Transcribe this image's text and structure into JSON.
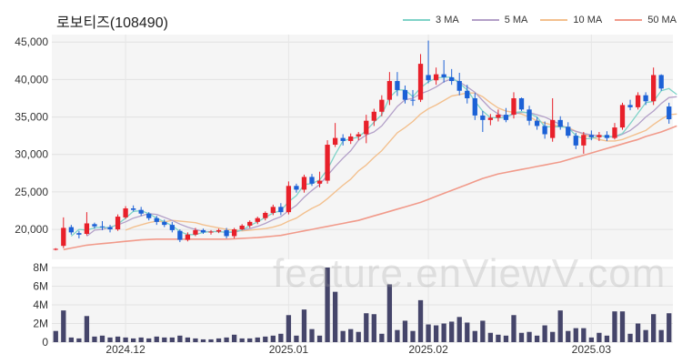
{
  "title": "로보티즈(108490)",
  "watermark": "feature.enViewV.com",
  "colors": {
    "up": "#e8202a",
    "down": "#1c61d6",
    "volume": "#45456a",
    "ma3": "#7fd3c8",
    "ma5": "#b3a0c8",
    "ma10": "#f3c08e",
    "ma50": "#f19a8a"
  },
  "legend": [
    {
      "label": "3 MA",
      "color": "#7fd3c8"
    },
    {
      "label": "5 MA",
      "color": "#b3a0c8"
    },
    {
      "label": "10 MA",
      "color": "#f3c08e"
    },
    {
      "label": "50 MA",
      "color": "#f19a8a"
    }
  ],
  "chart_data": {
    "type": "candlestick",
    "price_axis": {
      "ylim": [
        16000,
        46000
      ],
      "ticks": [
        20000,
        25000,
        30000,
        35000,
        40000,
        45000
      ],
      "tick_labels": [
        "20,000",
        "25,000",
        "30,000",
        "35,000",
        "40,000",
        "45,000"
      ]
    },
    "volume_axis": {
      "ylim": [
        0,
        8000000
      ],
      "ticks": [
        0,
        2000000,
        4000000,
        6000000,
        8000000
      ],
      "tick_labels": [
        "0",
        "2M",
        "4M",
        "6M",
        "8M"
      ]
    },
    "x_tick_labels": [
      {
        "label": "2024.12",
        "index": 9
      },
      {
        "label": "2025.01",
        "index": 30
      },
      {
        "label": "2025.02",
        "index": 48
      },
      {
        "label": "2025.03",
        "index": 69
      }
    ],
    "candles": [
      [
        17300,
        17500,
        17200,
        17400,
        1200000
      ],
      [
        17800,
        21600,
        17500,
        20200,
        3400000
      ],
      [
        20300,
        20600,
        19300,
        19600,
        500000
      ],
      [
        19500,
        19800,
        18800,
        19300,
        400000
      ],
      [
        19400,
        22300,
        19200,
        20800,
        2800000
      ],
      [
        20700,
        20900,
        20100,
        20400,
        600000
      ],
      [
        20400,
        21100,
        19900,
        20300,
        700000
      ],
      [
        20300,
        20600,
        19600,
        20000,
        500000
      ],
      [
        20000,
        22000,
        19800,
        21700,
        600000
      ],
      [
        21600,
        23100,
        21400,
        22800,
        500000
      ],
      [
        22800,
        23200,
        22400,
        22600,
        400000
      ],
      [
        22600,
        23000,
        21800,
        22100,
        500000
      ],
      [
        22100,
        22300,
        21200,
        21500,
        400000
      ],
      [
        21500,
        21800,
        20600,
        21000,
        600000
      ],
      [
        21000,
        21300,
        20300,
        20600,
        500000
      ],
      [
        20600,
        21000,
        19600,
        19900,
        500000
      ],
      [
        19800,
        20000,
        18300,
        18600,
        700000
      ],
      [
        18600,
        19600,
        18400,
        19300,
        500000
      ],
      [
        19300,
        20200,
        19100,
        19900,
        400000
      ],
      [
        19900,
        20100,
        19400,
        19600,
        300000
      ],
      [
        19600,
        19900,
        19300,
        19700,
        300000
      ],
      [
        19700,
        20100,
        19500,
        19900,
        400000
      ],
      [
        19900,
        20200,
        18800,
        19100,
        500000
      ],
      [
        19100,
        20200,
        18800,
        20000,
        800000
      ],
      [
        20000,
        20700,
        19900,
        20500,
        400000
      ],
      [
        20500,
        21200,
        20200,
        21000,
        400000
      ],
      [
        21000,
        21700,
        20700,
        21500,
        500000
      ],
      [
        21500,
        22400,
        21200,
        22200,
        600000
      ],
      [
        22200,
        23300,
        21900,
        23000,
        700000
      ],
      [
        23000,
        23500,
        21900,
        22300,
        900000
      ],
      [
        22300,
        26400,
        22000,
        25800,
        2900000
      ],
      [
        25800,
        26100,
        24900,
        25300,
        700000
      ],
      [
        25300,
        27300,
        24900,
        27000,
        3500000
      ],
      [
        27000,
        27400,
        25800,
        26100,
        1400000
      ],
      [
        26100,
        27700,
        25600,
        26500,
        700000
      ],
      [
        26500,
        31900,
        26100,
        31300,
        8000000
      ],
      [
        31300,
        34200,
        31000,
        32200,
        5400000
      ],
      [
        32200,
        32700,
        31200,
        31800,
        1200000
      ],
      [
        31800,
        32800,
        31400,
        32400,
        1400000
      ],
      [
        32400,
        33000,
        31900,
        32700,
        1100000
      ],
      [
        32700,
        35300,
        31500,
        34500,
        3100000
      ],
      [
        34500,
        36100,
        33800,
        35700,
        3000000
      ],
      [
        35700,
        37900,
        35100,
        37300,
        900000
      ],
      [
        37300,
        41000,
        36600,
        39800,
        6200000
      ],
      [
        39800,
        41000,
        37800,
        38600,
        1300000
      ],
      [
        38600,
        39200,
        36800,
        37300,
        2300000
      ],
      [
        37300,
        38600,
        36500,
        37200,
        1200000
      ],
      [
        37300,
        43400,
        37000,
        42100,
        4500000
      ],
      [
        40600,
        45200,
        39500,
        39900,
        1900000
      ],
      [
        39900,
        41600,
        39300,
        40700,
        1800000
      ],
      [
        40700,
        42600,
        39600,
        40300,
        2000000
      ],
      [
        40300,
        41400,
        39300,
        39800,
        2200000
      ],
      [
        39800,
        40900,
        37900,
        38500,
        2700000
      ],
      [
        38500,
        39300,
        36800,
        37500,
        2100000
      ],
      [
        37500,
        38200,
        34600,
        35200,
        1200000
      ],
      [
        35200,
        35800,
        33000,
        34600,
        2300000
      ],
      [
        34600,
        35400,
        33900,
        34900,
        1000000
      ],
      [
        34900,
        36000,
        34400,
        35300,
        800000
      ],
      [
        35300,
        36200,
        34300,
        34600,
        700000
      ],
      [
        35300,
        38300,
        34800,
        37500,
        2900000
      ],
      [
        37500,
        37600,
        35800,
        36000,
        1000000
      ],
      [
        36000,
        36500,
        33900,
        34500,
        1100000
      ],
      [
        34500,
        35000,
        33300,
        33800,
        700000
      ],
      [
        33800,
        34400,
        32100,
        32700,
        1800000
      ],
      [
        32200,
        37500,
        31700,
        34600,
        1100000
      ],
      [
        34600,
        35100,
        33300,
        33700,
        3400000
      ],
      [
        33700,
        34300,
        32200,
        32500,
        1200000
      ],
      [
        32500,
        32900,
        30700,
        31200,
        1500000
      ],
      [
        31200,
        33000,
        30100,
        32600,
        1500000
      ],
      [
        32600,
        33200,
        31900,
        32300,
        500000
      ],
      [
        32300,
        33000,
        31800,
        32600,
        1000000
      ],
      [
        32600,
        33100,
        31800,
        32200,
        700000
      ],
      [
        32200,
        34200,
        32000,
        33600,
        3300000
      ],
      [
        33600,
        36900,
        33300,
        36600,
        3300000
      ],
      [
        36600,
        37300,
        35900,
        36300,
        900000
      ],
      [
        36300,
        38300,
        36000,
        37900,
        2000000
      ],
      [
        37900,
        38300,
        36600,
        37100,
        1300000
      ],
      [
        37100,
        41600,
        36600,
        40600,
        3000000
      ],
      [
        40600,
        40700,
        38500,
        38800,
        1300000
      ],
      [
        36400,
        36900,
        34100,
        34700,
        3100000
      ]
    ],
    "ma3": [
      null,
      null,
      19100,
      20000,
      19900,
      20200,
      20300,
      20200,
      20700,
      21500,
      22400,
      22500,
      22100,
      21500,
      21000,
      20500,
      19700,
      19300,
      19300,
      19600,
      19700,
      19700,
      19600,
      19700,
      19900,
      20500,
      21000,
      21600,
      22200,
      22500,
      23700,
      24500,
      26000,
      26100,
      26600,
      28000,
      30000,
      31800,
      32100,
      32300,
      33200,
      34300,
      35300,
      37600,
      38600,
      38600,
      37700,
      38900,
      39700,
      40200,
      40300,
      40300,
      39500,
      38600,
      37100,
      35800,
      34900,
      34900,
      34900,
      35600,
      35700,
      35500,
      35000,
      33700,
      33700,
      33700,
      33600,
      32500,
      32100,
      32100,
      32500,
      32400,
      32400,
      32800,
      34100,
      35500,
      36900,
      37100,
      38500,
      38800,
      38000
    ],
    "ma5": [
      null,
      null,
      null,
      null,
      19100,
      19900,
      20000,
      20300,
      20600,
      21000,
      21500,
      21800,
      22100,
      22000,
      21600,
      21200,
      20700,
      20300,
      20000,
      19700,
      19700,
      19700,
      19600,
      19600,
      19900,
      20100,
      20400,
      20800,
      21300,
      21700,
      22500,
      23200,
      24300,
      25200,
      26000,
      27200,
      28400,
      29500,
      30500,
      31900,
      32600,
      33000,
      33800,
      35100,
      36400,
      37300,
      37500,
      38100,
      38500,
      39000,
      39700,
      40100,
      39700,
      39000,
      38300,
      37200,
      36100,
      35400,
      35000,
      35400,
      35600,
      35600,
      35300,
      35000,
      34500,
      34000,
      33400,
      33100,
      32800,
      32600,
      32500,
      32400,
      32300,
      32700,
      33200,
      34000,
      35000,
      35800,
      36800,
      37600,
      37700
    ],
    "ma10": [
      null,
      null,
      null,
      null,
      null,
      null,
      null,
      null,
      null,
      19900,
      20300,
      20600,
      20900,
      21100,
      21000,
      21200,
      21100,
      21000,
      20900,
      20600,
      20400,
      20200,
      20000,
      19900,
      19800,
      19900,
      20000,
      20100,
      20300,
      20600,
      21100,
      21500,
      22200,
      22800,
      23300,
      24100,
      25000,
      25900,
      26700,
      27800,
      28600,
      29600,
      30500,
      31700,
      32900,
      33600,
      34400,
      35400,
      36100,
      36600,
      37200,
      37800,
      38000,
      38200,
      38200,
      37700,
      36900,
      36200,
      35800,
      35600,
      35400,
      35000,
      34500,
      34200,
      33900,
      33800,
      33600,
      33100,
      32700,
      32300,
      32000,
      31800,
      31800,
      32000,
      32400,
      32800,
      33200,
      34000,
      34700,
      35300,
      35400
    ],
    "ma50": [
      null,
      17300,
      17500,
      17700,
      17900,
      18000,
      18100,
      18200,
      18300,
      18400,
      18500,
      18600,
      18650,
      18700,
      18700,
      18700,
      18700,
      18700,
      18700,
      18700,
      18700,
      18700,
      18700,
      18750,
      18800,
      18850,
      18900,
      19000,
      19100,
      19200,
      19400,
      19600,
      19800,
      20000,
      20200,
      20400,
      20600,
      20800,
      21000,
      21200,
      21500,
      21800,
      22100,
      22400,
      22700,
      23000,
      23300,
      23600,
      24000,
      24400,
      24800,
      25200,
      25600,
      26000,
      26400,
      26800,
      27100,
      27400,
      27600,
      27800,
      28000,
      28200,
      28400,
      28600,
      28800,
      29000,
      29300,
      29600,
      29900,
      30200,
      30500,
      30800,
      31100,
      31400,
      31700,
      32000,
      32400,
      32700,
      33000,
      33400,
      33800
    ]
  }
}
